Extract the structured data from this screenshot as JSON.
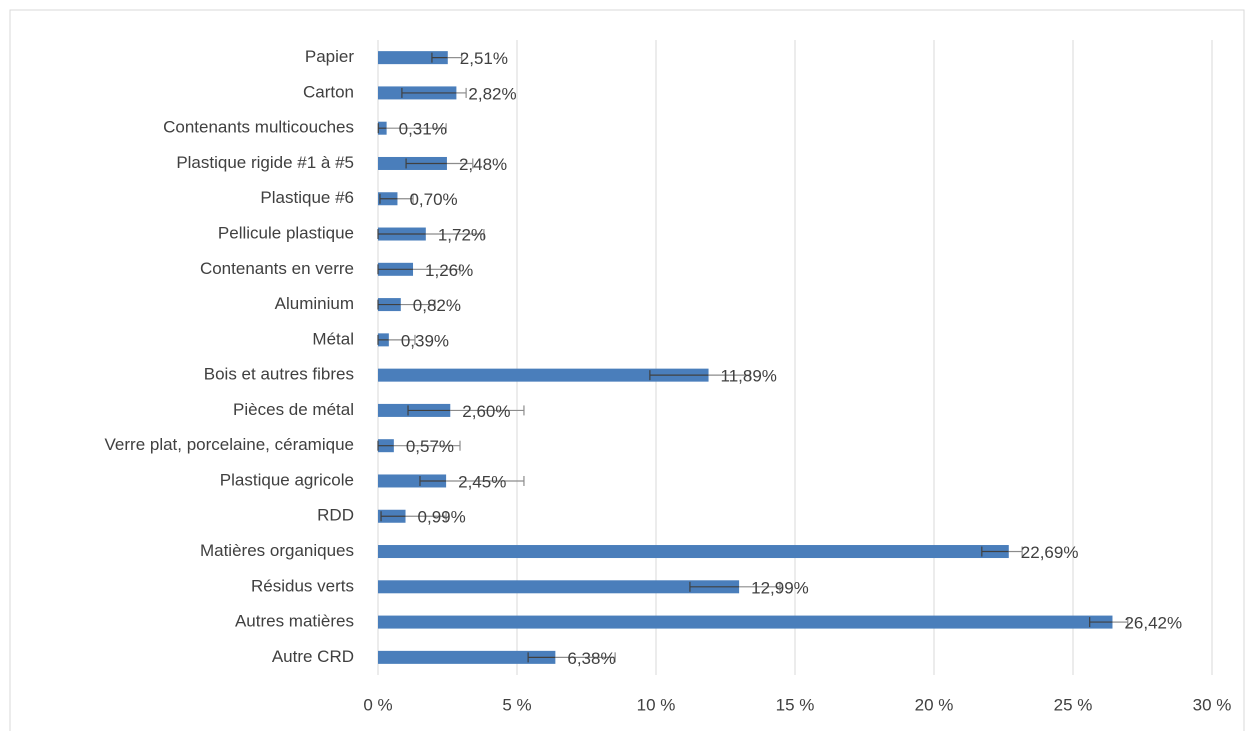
{
  "chart_data": {
    "type": "bar",
    "orientation": "horizontal",
    "categories": [
      "Papier",
      "Carton",
      "Contenants multicouches",
      "Plastique rigide #1 à #5",
      "Plastique #6",
      "Pellicule plastique",
      "Contenants en verre",
      "Aluminium",
      "Métal",
      "Bois et autres fibres",
      "Pièces de métal",
      "Verre plat, porcelaine, céramique",
      "Plastique agricole",
      "RDD",
      "Matières organiques",
      "Résidus verts",
      "Autres matières",
      "Autre CRD"
    ],
    "values": [
      2.51,
      2.82,
      0.31,
      2.48,
      0.7,
      1.72,
      1.26,
      0.82,
      0.39,
      11.89,
      2.6,
      0.57,
      2.45,
      0.99,
      22.69,
      12.99,
      26.42,
      6.38
    ],
    "value_labels": [
      "2,51%",
      "2,82%",
      "0,31%",
      "2,48%",
      "0,70%",
      "1,72%",
      "1,26%",
      "0,82%",
      "0,39%",
      "11,89%",
      "2,60%",
      "0,57%",
      "2,45%",
      "0,99%",
      "22,69%",
      "12,99%",
      "26,42%",
      "6,38%"
    ],
    "error_minus": [
      0.57,
      1.96,
      0.3,
      1.47,
      0.63,
      1.72,
      1.26,
      0.82,
      0.39,
      2.11,
      1.52,
      0.57,
      0.94,
      0.88,
      0.97,
      1.77,
      0.82,
      0.98
    ],
    "error_plus": [
      0.5,
      0.35,
      2.14,
      0.93,
      0.56,
      2.09,
      1.69,
      1.23,
      0.94,
      1.49,
      2.65,
      2.38,
      2.8,
      1.46,
      0.48,
      1.47,
      0.55,
      2.15
    ],
    "color": "#4a7ebb",
    "xlim": [
      0,
      30
    ],
    "xticks": [
      {
        "value": 0,
        "label": "0 %"
      },
      {
        "value": 5,
        "label": "5 %"
      },
      {
        "value": 10,
        "label": "10 %"
      },
      {
        "value": 15,
        "label": "15 %"
      },
      {
        "value": 20,
        "label": "20 %"
      },
      {
        "value": 25,
        "label": "25 %"
      },
      {
        "value": 30,
        "label": "30 %"
      }
    ],
    "grid": true
  }
}
